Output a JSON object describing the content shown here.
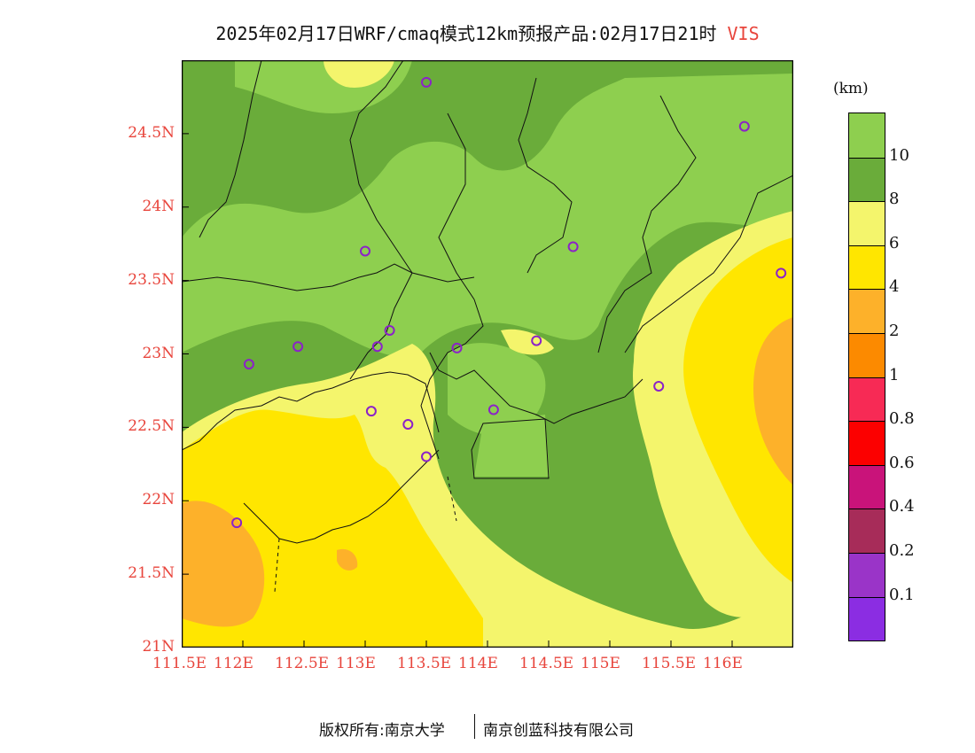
{
  "title": {
    "main": "2025年02月17日WRF/cmaq模式12km预报产品:02月17日21时",
    "variable": "VIS"
  },
  "axes": {
    "y_labels": [
      "24.5N",
      "24N",
      "23.5N",
      "23N",
      "22.5N",
      "22N",
      "21.5N",
      "21N"
    ],
    "x_labels": [
      "111.5E",
      "112E",
      "112.5E",
      "113E",
      "113.5E",
      "114E",
      "114.5E",
      "115E",
      "115.5E",
      "116E"
    ],
    "lon_range": [
      111.5,
      116.5
    ],
    "lat_range": [
      21,
      25
    ]
  },
  "colorbar": {
    "unit": "(km)",
    "labels": [
      "10",
      "8",
      "6",
      "4",
      "2",
      "1",
      "0.8",
      "0.6",
      "0.4",
      "0.2",
      "0.1"
    ],
    "colors": [
      "#8ecf4f",
      "#6aac3a",
      "#f4f56c",
      "#ffe600",
      "#fdb12a",
      "#fc8a00",
      "#f72a55",
      "#fc0000",
      "#c9137a",
      "#a72c59",
      "#9a34c8",
      "#8b2de2"
    ]
  },
  "station_markers": [
    {
      "lon": 113.5,
      "lat": 24.85
    },
    {
      "lon": 116.1,
      "lat": 24.55
    },
    {
      "lon": 113.0,
      "lat": 23.7
    },
    {
      "lon": 114.7,
      "lat": 23.73
    },
    {
      "lon": 116.4,
      "lat": 23.55
    },
    {
      "lon": 112.45,
      "lat": 23.05
    },
    {
      "lon": 113.1,
      "lat": 23.05
    },
    {
      "lon": 113.2,
      "lat": 23.16
    },
    {
      "lon": 113.75,
      "lat": 23.04
    },
    {
      "lon": 114.4,
      "lat": 23.09
    },
    {
      "lon": 112.05,
      "lat": 22.93
    },
    {
      "lon": 115.4,
      "lat": 22.78
    },
    {
      "lon": 113.05,
      "lat": 22.61
    },
    {
      "lon": 113.35,
      "lat": 22.52
    },
    {
      "lon": 114.05,
      "lat": 22.62
    },
    {
      "lon": 113.5,
      "lat": 22.3
    },
    {
      "lon": 111.95,
      "lat": 21.85
    }
  ],
  "footer": {
    "left": "版权所有:南京大学",
    "right": "南京创蓝科技有限公司"
  }
}
